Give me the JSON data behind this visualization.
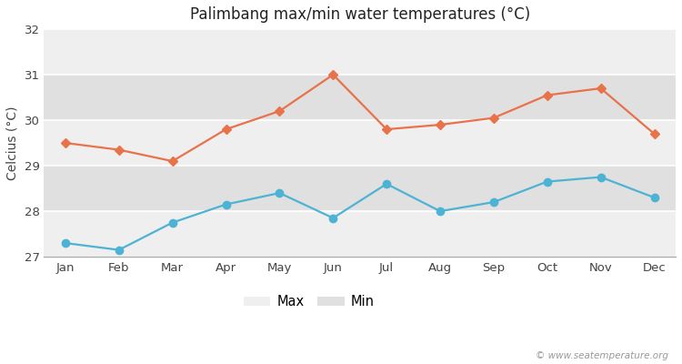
{
  "title": "Palimbang max/min water temperatures (°C)",
  "ylabel": "Celcius (°C)",
  "months": [
    "Jan",
    "Feb",
    "Mar",
    "Apr",
    "May",
    "Jun",
    "Jul",
    "Aug",
    "Sep",
    "Oct",
    "Nov",
    "Dec"
  ],
  "max_temps": [
    29.5,
    29.35,
    29.1,
    29.8,
    30.2,
    31.0,
    29.8,
    29.9,
    30.05,
    30.55,
    30.7,
    29.7
  ],
  "min_temps": [
    27.3,
    27.15,
    27.75,
    28.15,
    28.4,
    27.85,
    28.6,
    28.0,
    28.2,
    28.65,
    28.75,
    28.3
  ],
  "max_color": "#e8724a",
  "min_color": "#4db3d4",
  "bg_color": "#ffffff",
  "band_light": "#efefef",
  "band_dark": "#e0e0e0",
  "ylim": [
    27,
    32
  ],
  "yticks": [
    27,
    28,
    29,
    30,
    31,
    32
  ],
  "watermark": "© www.seatemperature.org",
  "legend_labels": [
    "Max",
    "Min"
  ]
}
